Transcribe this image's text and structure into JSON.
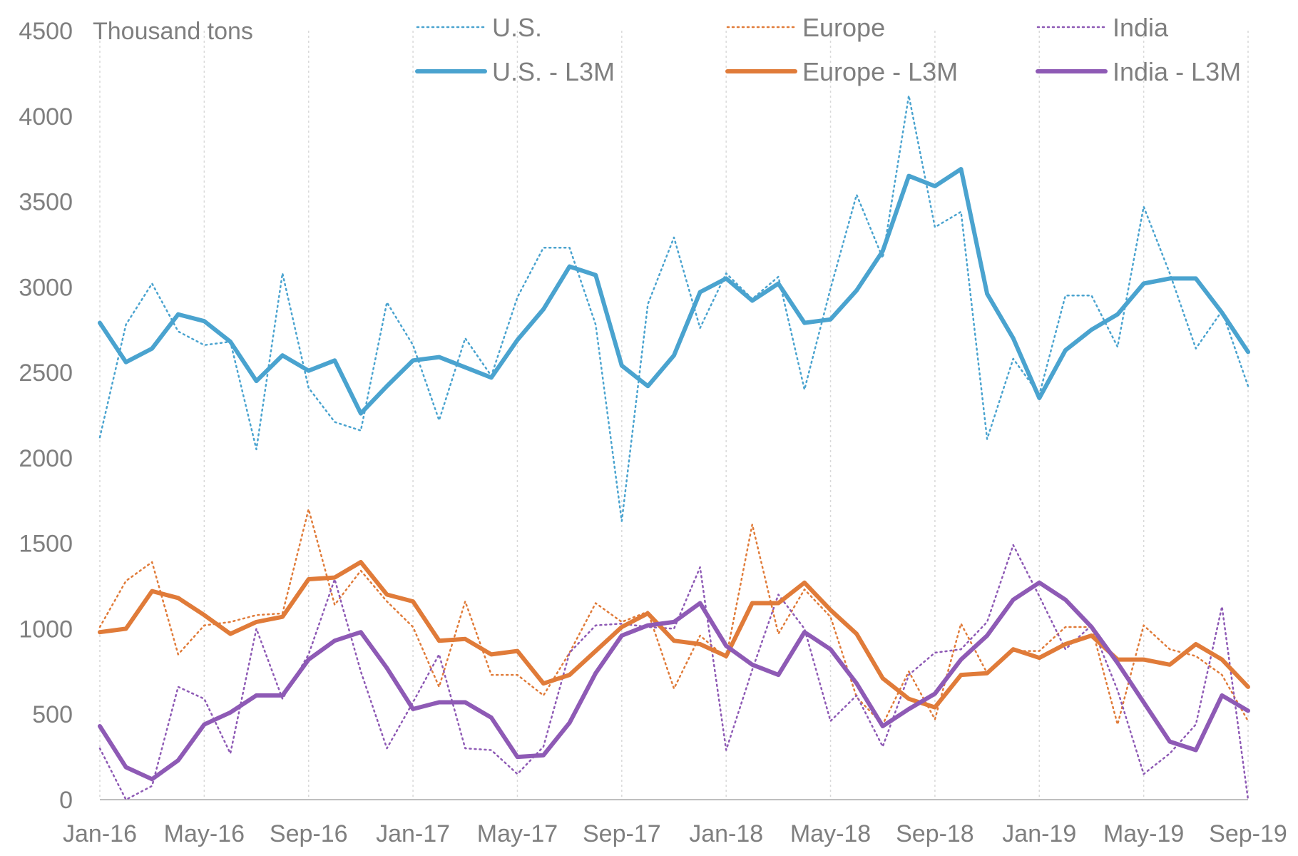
{
  "chart_data": {
    "type": "line",
    "ylabel": "Thousand tons",
    "ylim": [
      0,
      4500
    ],
    "yticks": [
      0,
      500,
      1000,
      1500,
      2000,
      2500,
      3000,
      3500,
      4000,
      4500
    ],
    "ytick_labels": [
      "0",
      "500",
      "1000",
      "1500",
      "2000",
      "2500",
      "3000",
      "3500",
      "4000",
      "4500"
    ],
    "xtick_labels": [
      "Jan-16",
      "May-16",
      "Sep-16",
      "Jan-17",
      "May-17",
      "Sep-17",
      "Jan-18",
      "May-18",
      "Sep-18",
      "Jan-19",
      "May-19",
      "Sep-19"
    ],
    "x": [
      "Jan-16",
      "Feb-16",
      "Mar-16",
      "Apr-16",
      "May-16",
      "Jun-16",
      "Jul-16",
      "Aug-16",
      "Sep-16",
      "Oct-16",
      "Nov-16",
      "Dec-16",
      "Jan-17",
      "Feb-17",
      "Mar-17",
      "Apr-17",
      "May-17",
      "Jun-17",
      "Jul-17",
      "Aug-17",
      "Sep-17",
      "Oct-17",
      "Nov-17",
      "Dec-17",
      "Jan-18",
      "Feb-18",
      "Mar-18",
      "Apr-18",
      "May-18",
      "Jun-18",
      "Jul-18",
      "Aug-18",
      "Sep-18",
      "Oct-18",
      "Nov-18",
      "Dec-18",
      "Jan-19",
      "Feb-19",
      "Mar-19",
      "Apr-19",
      "May-19",
      "Jun-19",
      "Jul-19",
      "Aug-19",
      "Sep-19"
    ],
    "grid": "vertical dotted",
    "legend_position": "top",
    "series": [
      {
        "name": "U.S.",
        "style": "dotted",
        "color": "#4aa3cf",
        "values": [
          2120,
          2780,
          3020,
          2740,
          2660,
          2680,
          2050,
          3080,
          2410,
          2210,
          2160,
          2910,
          2660,
          2220,
          2700,
          2480,
          2940,
          3230,
          3230,
          2780,
          1630,
          2900,
          3290,
          2760,
          3080,
          2930,
          3060,
          2400,
          2990,
          3540,
          3170,
          4120,
          3350,
          3440,
          2110,
          2580,
          2370,
          2950,
          2950,
          2650,
          3470,
          3080,
          2640,
          2860,
          2420
        ]
      },
      {
        "name": "U.S. - L3M",
        "style": "solid",
        "color": "#4aa3cf",
        "values": [
          2790,
          2560,
          2640,
          2840,
          2800,
          2680,
          2450,
          2600,
          2510,
          2570,
          2260,
          2420,
          2570,
          2590,
          2530,
          2470,
          2690,
          2870,
          3120,
          3070,
          2540,
          2420,
          2600,
          2970,
          3050,
          2920,
          3020,
          2790,
          2810,
          2980,
          3210,
          3650,
          3590,
          3690,
          2960,
          2700,
          2350,
          2630,
          2750,
          2840,
          3020,
          3050,
          3050,
          2850,
          2620
        ]
      },
      {
        "name": "Europe",
        "style": "dotted",
        "color": "#e07b39",
        "values": [
          1010,
          1280,
          1390,
          850,
          1020,
          1040,
          1080,
          1090,
          1700,
          1140,
          1340,
          1160,
          1010,
          660,
          1160,
          730,
          730,
          610,
          860,
          1150,
          1040,
          1100,
          650,
          960,
          830,
          1610,
          970,
          1230,
          1070,
          600,
          440,
          750,
          470,
          1030,
          740,
          870,
          870,
          1010,
          1010,
          440,
          1020,
          880,
          840,
          730,
          460
        ]
      },
      {
        "name": "Europe - L3M",
        "style": "solid",
        "color": "#e07b39",
        "values": [
          980,
          1000,
          1220,
          1180,
          1080,
          970,
          1040,
          1070,
          1290,
          1300,
          1390,
          1200,
          1160,
          930,
          940,
          850,
          870,
          680,
          730,
          870,
          1010,
          1090,
          930,
          910,
          840,
          1150,
          1150,
          1270,
          1110,
          970,
          710,
          590,
          540,
          730,
          740,
          880,
          830,
          910,
          960,
          820,
          820,
          790,
          910,
          820,
          660
        ]
      },
      {
        "name": "India",
        "style": "dotted",
        "color": "#8e5ab5",
        "values": [
          300,
          0,
          80,
          660,
          590,
          270,
          1000,
          590,
          850,
          1290,
          750,
          300,
          570,
          850,
          300,
          290,
          150,
          310,
          860,
          1020,
          1030,
          1010,
          1000,
          1360,
          290,
          760,
          1200,
          1000,
          460,
          610,
          310,
          730,
          860,
          880,
          1040,
          1490,
          1190,
          880,
          1020,
          640,
          150,
          270,
          440,
          1130,
          0
        ]
      },
      {
        "name": "India - L3M",
        "style": "solid",
        "color": "#8e5ab5",
        "values": [
          430,
          190,
          120,
          230,
          440,
          510,
          610,
          610,
          820,
          930,
          980,
          770,
          530,
          570,
          570,
          480,
          250,
          260,
          450,
          740,
          960,
          1020,
          1040,
          1150,
          900,
          790,
          730,
          980,
          880,
          680,
          430,
          530,
          620,
          820,
          960,
          1170,
          1270,
          1170,
          1010,
          800,
          570,
          340,
          290,
          610,
          520
        ]
      }
    ]
  }
}
